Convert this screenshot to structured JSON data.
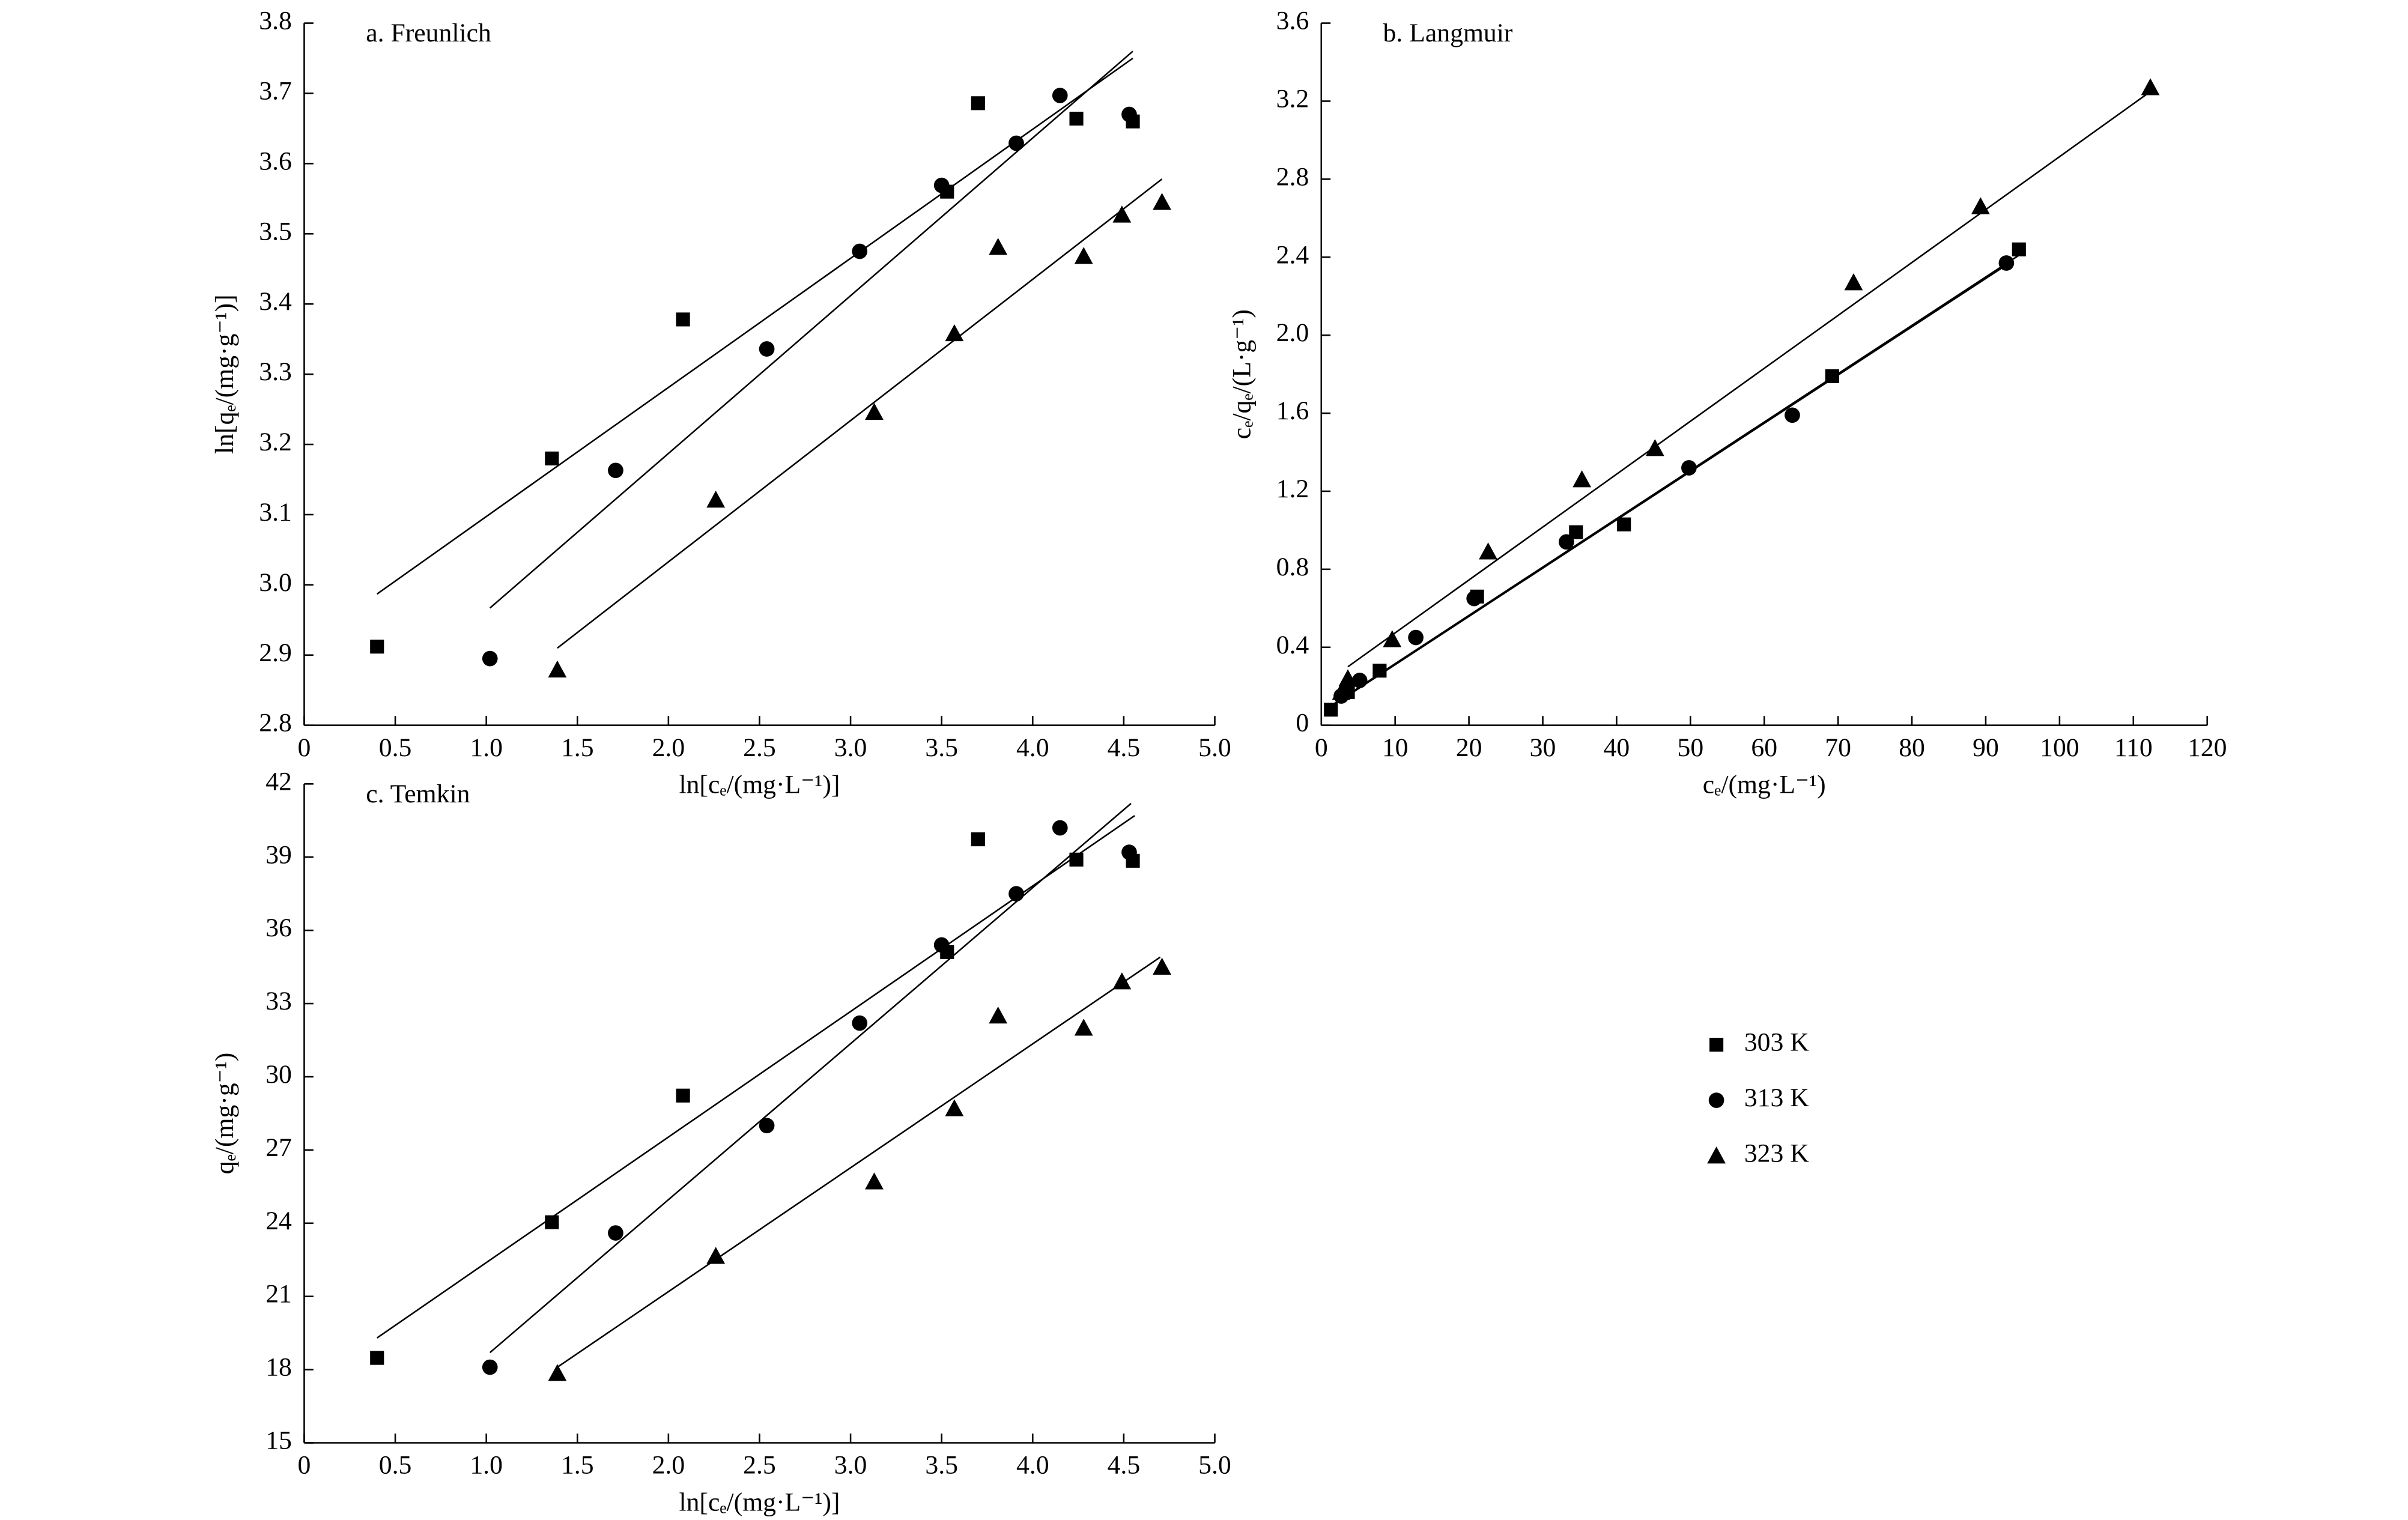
{
  "chart_data": [
    {
      "type": "scatter",
      "title": "a. Freunlich",
      "x_label": "ln[cₑ/(mg·L⁻¹)]",
      "y_label": "ln[qₑ/(mg·g⁻¹)]",
      "xlim": [
        0,
        5
      ],
      "xticks": [
        0,
        0.5,
        {
          "value": 1,
          "label": "1.0"
        },
        1.5,
        {
          "value": 2,
          "label": "2.0"
        },
        2.5,
        {
          "value": 3,
          "label": "3.0"
        },
        3.5,
        {
          "value": 4,
          "label": "4.0"
        },
        4.5,
        {
          "value": 5,
          "label": "5.0"
        }
      ],
      "ylim": [
        2.8,
        3.8
      ],
      "yticks": [
        2.8,
        2.9,
        {
          "value": 3,
          "label": "3.0"
        },
        3.1,
        3.2,
        3.3,
        3.4,
        3.5,
        3.6,
        3.7,
        3.8
      ],
      "series": [
        {
          "name": "303 K",
          "marker": "square",
          "color": "#000000",
          "x": [
            0.4,
            1.36,
            2.08,
            3.53,
            3.7,
            4.24,
            4.55
          ],
          "values": [
            2.912,
            3.18,
            3.378,
            3.56,
            3.686,
            3.664,
            3.66
          ],
          "fit": {
            "x": [
              0.4,
              4.55
            ],
            "y": [
              2.987,
              3.75
            ]
          }
        },
        {
          "name": "313 K",
          "marker": "circle",
          "color": "#000000",
          "x": [
            1.02,
            1.71,
            2.54,
            3.05,
            3.5,
            3.91,
            4.15,
            4.53
          ],
          "values": [
            2.895,
            3.163,
            3.336,
            3.475,
            3.569,
            3.629,
            3.697,
            3.67
          ],
          "fit": {
            "x": [
              1.02,
              4.55
            ],
            "y": [
              2.967,
              3.76
            ]
          }
        },
        {
          "name": "323 K",
          "marker": "triangle",
          "color": "#000000",
          "x": [
            1.39,
            2.26,
            3.13,
            3.57,
            3.81,
            4.28,
            4.49,
            4.71
          ],
          "values": [
            2.879,
            3.121,
            3.246,
            3.358,
            3.481,
            3.468,
            3.527,
            3.545
          ],
          "fit": {
            "x": [
              1.39,
              4.71
            ],
            "y": [
              2.91,
              3.578
            ]
          }
        }
      ]
    },
    {
      "type": "scatter",
      "title": "b. Langmuir",
      "x_label": "cₑ/(mg·L⁻¹)",
      "y_label": "cₑ/qₑ/(L·g⁻¹)",
      "xlim": [
        0,
        120
      ],
      "xticks": [
        0,
        10,
        20,
        30,
        40,
        50,
        60,
        70,
        80,
        90,
        100,
        110,
        120
      ],
      "ylim": [
        0,
        3.6
      ],
      "yticks": [
        0,
        0.4,
        0.8,
        1.2,
        1.6,
        {
          "value": 2,
          "label": "2.0"
        },
        2.4,
        2.8,
        3.2,
        3.6
      ],
      "series": [
        {
          "marker": "square",
          "color": "#000000",
          "x": [
            1.3,
            3.6,
            7.9,
            21.1,
            34.5,
            41.0,
            69.2,
            94.5
          ],
          "values": [
            0.08,
            0.17,
            0.28,
            0.66,
            0.99,
            1.03,
            1.79,
            2.44
          ],
          "fit": {
            "x": [
              1.3,
              94.5
            ],
            "y": [
              0.1,
              2.41
            ]
          }
        },
        {
          "marker": "circle",
          "color": "#000000",
          "x": [
            2.7,
            5.2,
            12.8,
            20.7,
            33.2,
            49.8,
            63.8,
            92.8
          ],
          "values": [
            0.15,
            0.23,
            0.45,
            0.65,
            0.94,
            1.32,
            1.59,
            2.37
          ],
          "fit": {
            "x": [
              2.7,
              92.8
            ],
            "y": [
              0.13,
              2.36
            ]
          }
        },
        {
          "marker": "triangle",
          "color": "#000000",
          "x": [
            2.7,
            3.6,
            9.6,
            22.6,
            35.3,
            45.2,
            72.1,
            89.3,
            112.3
          ],
          "values": [
            0.17,
            0.24,
            0.44,
            0.89,
            1.26,
            1.42,
            2.27,
            2.66,
            3.27
          ],
          "fit": {
            "x": [
              3.6,
              112.7
            ],
            "y": [
              0.3,
              3.26
            ]
          }
        }
      ]
    },
    {
      "type": "scatter",
      "title": "c. Temkin",
      "x_label": "ln[cₑ/(mg·L⁻¹)]",
      "y_label": "qₑ/(mg·g⁻¹)",
      "xlim": [
        0,
        5
      ],
      "xticks": [
        0,
        0.5,
        {
          "value": 1,
          "label": "1.0"
        },
        1.5,
        {
          "value": 2,
          "label": "2.0"
        },
        2.5,
        {
          "value": 3,
          "label": "3.0"
        },
        3.5,
        {
          "value": 4,
          "label": "4.0"
        },
        4.5,
        {
          "value": 5,
          "label": "5.0"
        }
      ],
      "ylim": [
        15,
        42
      ],
      "yticks": [
        15,
        18,
        21,
        24,
        27,
        30,
        33,
        36,
        39,
        42
      ],
      "series": [
        {
          "marker": "square",
          "color": "#000000",
          "x": [
            0.4,
            1.36,
            2.08,
            3.53,
            3.7,
            4.24,
            4.55
          ],
          "values": [
            18.48,
            24.04,
            29.23,
            35.11,
            39.73,
            38.9,
            38.85
          ],
          "fit": {
            "x": [
              0.4,
              4.56
            ],
            "y": [
              19.3,
              40.7
            ]
          }
        },
        {
          "marker": "circle",
          "color": "#000000",
          "x": [
            1.02,
            1.71,
            2.54,
            3.05,
            3.5,
            3.91,
            4.15,
            4.53
          ],
          "values": [
            18.1,
            23.6,
            28.0,
            32.2,
            35.4,
            37.5,
            40.2,
            39.2
          ],
          "fit": {
            "x": [
              1.02,
              4.54
            ],
            "y": [
              18.7,
              41.2
            ]
          }
        },
        {
          "marker": "triangle",
          "color": "#000000",
          "x": [
            1.39,
            2.26,
            3.13,
            3.57,
            3.81,
            4.28,
            4.49,
            4.71
          ],
          "values": [
            17.85,
            22.65,
            25.7,
            28.7,
            32.5,
            32.0,
            33.9,
            34.5
          ],
          "fit": {
            "x": [
              1.39,
              4.7
            ],
            "y": [
              18.1,
              34.9
            ]
          }
        }
      ]
    }
  ]
}
